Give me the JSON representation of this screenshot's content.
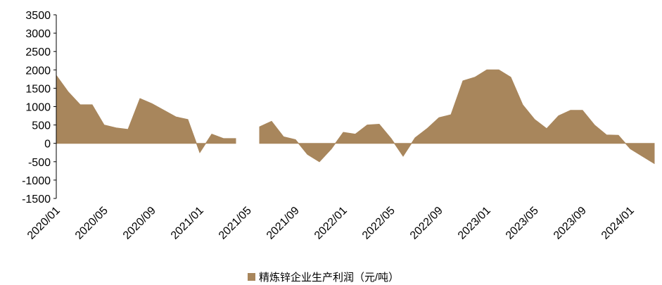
{
  "chart_data": {
    "type": "area",
    "categories": [
      "2020/01",
      null,
      null,
      null,
      "2020/05",
      null,
      null,
      null,
      "2020/09",
      null,
      null,
      null,
      "2021/01",
      null,
      null,
      null,
      "2021/05",
      null,
      null,
      null,
      "2021/09",
      null,
      null,
      null,
      "2022/01",
      null,
      null,
      null,
      "2022/05",
      null,
      null,
      null,
      "2022/09",
      null,
      null,
      null,
      "2023/01",
      null,
      null,
      null,
      "2023/05",
      null,
      null,
      null,
      "2023/09",
      null,
      null,
      null,
      "2024/01",
      null,
      null
    ],
    "series": [
      {
        "name": "精炼锌企业生产利润（元/吨）",
        "color": "#a8865c",
        "values": [
          1850,
          1400,
          1050,
          1050,
          500,
          420,
          380,
          1220,
          1080,
          900,
          720,
          650,
          -250,
          250,
          130,
          130,
          null,
          450,
          600,
          180,
          100,
          -300,
          -500,
          -150,
          300,
          250,
          500,
          520,
          130,
          -350,
          150,
          400,
          700,
          780,
          1700,
          1800,
          2000,
          2000,
          1800,
          1050,
          650,
          400,
          750,
          900,
          900,
          500,
          230,
          220,
          -150,
          -350,
          -550
        ]
      }
    ],
    "ylim": [
      -1500,
      3500
    ],
    "yticks": [
      -1500,
      -1000,
      -500,
      0,
      500,
      1000,
      1500,
      2000,
      2500,
      3000,
      3500
    ],
    "legend": "bottom"
  }
}
